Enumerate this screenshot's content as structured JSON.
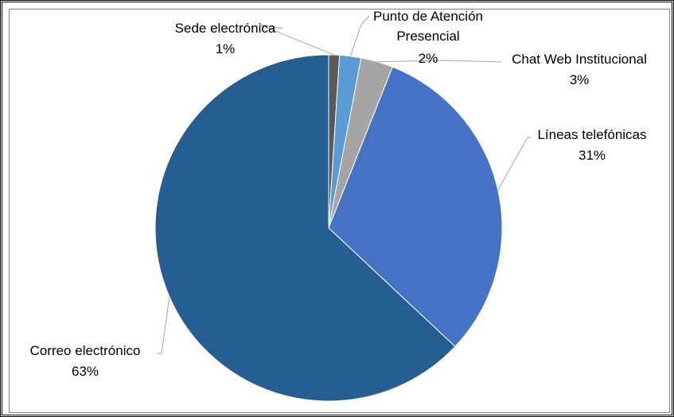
{
  "chart_data": {
    "type": "pie",
    "slices": [
      {
        "label": "Sede electrónica",
        "value": 1,
        "value_label": "1%",
        "color": "#595959"
      },
      {
        "label": "Punto de Atención Presencial",
        "label_lines": [
          "Punto de Atención",
          "Presencial"
        ],
        "value": 2,
        "value_label": "2%",
        "color": "#5b9bd5"
      },
      {
        "label": "Chat Web Institucional",
        "value": 3,
        "value_label": "3%",
        "color": "#a5a5a5"
      },
      {
        "label": "Líneas telefónicas",
        "value": 31,
        "value_label": "31%",
        "color": "#4472c4"
      },
      {
        "label": "Correo electrónico",
        "value": 63,
        "value_label": "63%",
        "color": "#255e91"
      }
    ]
  }
}
